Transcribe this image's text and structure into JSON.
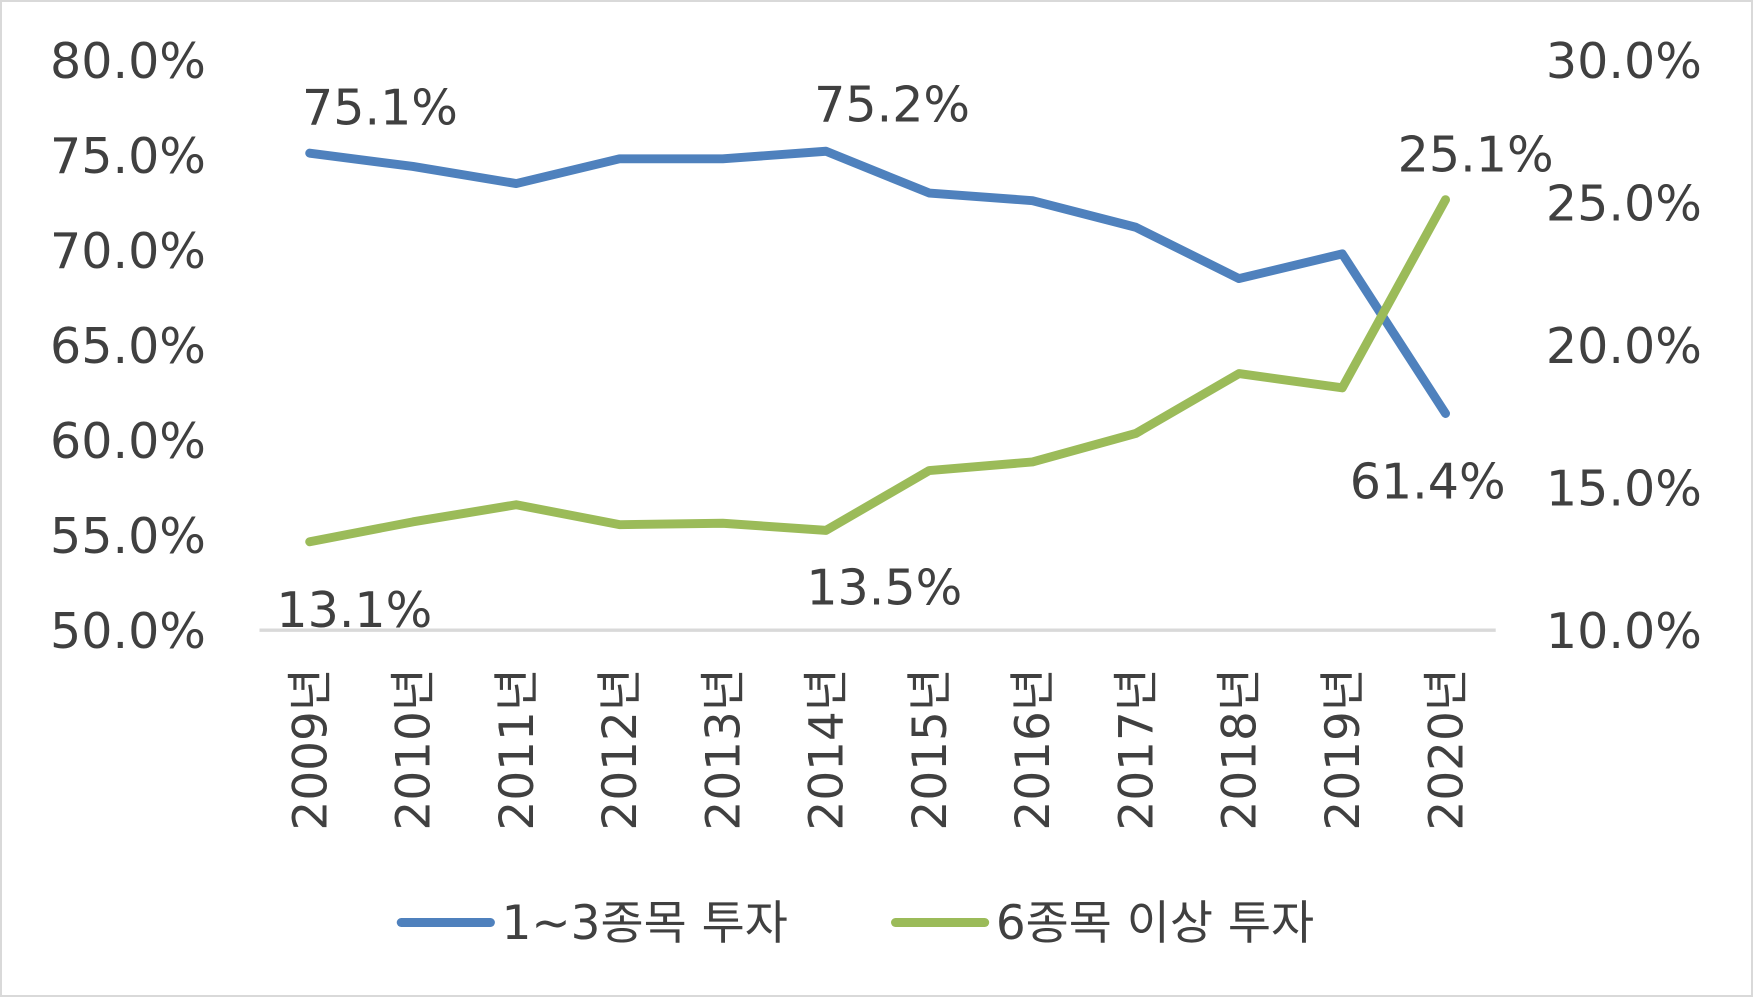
{
  "chart_data": {
    "type": "line",
    "title": "",
    "categories": [
      "2009년",
      "2010년",
      "2011년",
      "2012년",
      "2013년",
      "2014년",
      "2015년",
      "2016년",
      "2017년",
      "2018년",
      "2019년",
      "2020년"
    ],
    "y_left": {
      "range": [
        50,
        80
      ],
      "ticks": [
        "50.0%",
        "55.0%",
        "60.0%",
        "65.0%",
        "70.0%",
        "75.0%",
        "80.0%"
      ],
      "tick_values": [
        50,
        55,
        60,
        65,
        70,
        75,
        80
      ]
    },
    "y_right": {
      "range": [
        10,
        30
      ],
      "ticks": [
        "10.0%",
        "15.0%",
        "20.0%",
        "25.0%",
        "30.0%"
      ],
      "tick_values": [
        10,
        15,
        20,
        25,
        30
      ]
    },
    "series": [
      {
        "name": "1~3종목 투자",
        "axis": "left",
        "color": "#4F81BD",
        "values": [
          75.1,
          74.4,
          73.5,
          74.8,
          74.8,
          75.2,
          73.0,
          72.6,
          71.2,
          68.5,
          69.8,
          61.4
        ],
        "labels": [
          {
            "index": 0,
            "text": "75.1%"
          },
          {
            "index": 5,
            "text": "75.2%"
          },
          {
            "index": 11,
            "text": "61.4%"
          }
        ]
      },
      {
        "name": "6종목 이상 투자",
        "axis": "right",
        "color": "#9BBB59",
        "values": [
          13.1,
          13.8,
          14.4,
          13.7,
          13.75,
          13.5,
          15.6,
          15.9,
          16.9,
          19.0,
          18.5,
          25.1
        ],
        "labels": [
          {
            "index": 0,
            "text": "13.1%"
          },
          {
            "index": 5,
            "text": "13.5%"
          },
          {
            "index": 11,
            "text": "25.1%"
          }
        ]
      }
    ],
    "legend": "bottom",
    "grid": false
  }
}
